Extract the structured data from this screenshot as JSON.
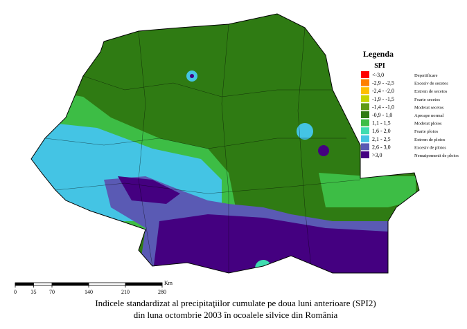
{
  "legend": {
    "title": "Legenda",
    "subtitle": "SPI",
    "items": [
      {
        "range": "<-3,0",
        "label": "Deşertificare",
        "color": "#ff0000"
      },
      {
        "range": "-2,9 - -2,5",
        "label": "Excesiv de secetos",
        "color": "#ff7f00"
      },
      {
        "range": "-2,4 - -2,0",
        "label": "Extrem de secetos",
        "color": "#ffbf00"
      },
      {
        "range": "-1,9 - -1,5",
        "label": "Foarte secetos",
        "color": "#c8d400"
      },
      {
        "range": "-1,4 - -1,0",
        "label": "Moderat secetos",
        "color": "#5f9a12"
      },
      {
        "range": "-0,9 - 1,0",
        "label": "Aproape normal",
        "color": "#2f7b13"
      },
      {
        "range": "1,1 - 1,5",
        "label": "Moderat ploios",
        "color": "#3dbd45"
      },
      {
        "range": "1,6 - 2,0",
        "label": "Foarte ploios",
        "color": "#3fdcb0"
      },
      {
        "range": "2,1 - 2,5",
        "label": "Extrem de ploios",
        "color": "#44c4e4"
      },
      {
        "range": "2,6 - 3,0",
        "label": "Excesiv de ploios",
        "color": "#5a5ab4"
      },
      {
        "range": ">3,0",
        "label": "Nemaipomenit de ploios",
        "color": "#440080"
      }
    ]
  },
  "scale": {
    "ticks": [
      0,
      35,
      70,
      140,
      210,
      280
    ],
    "unit": "Km"
  },
  "caption": [
    "Indicele standardizat al precipitaţiilor cumulate pe doua luni anterioare (SPI2)",
    "din luna octombrie 2003 în ocoalele silvice din România"
  ]
}
